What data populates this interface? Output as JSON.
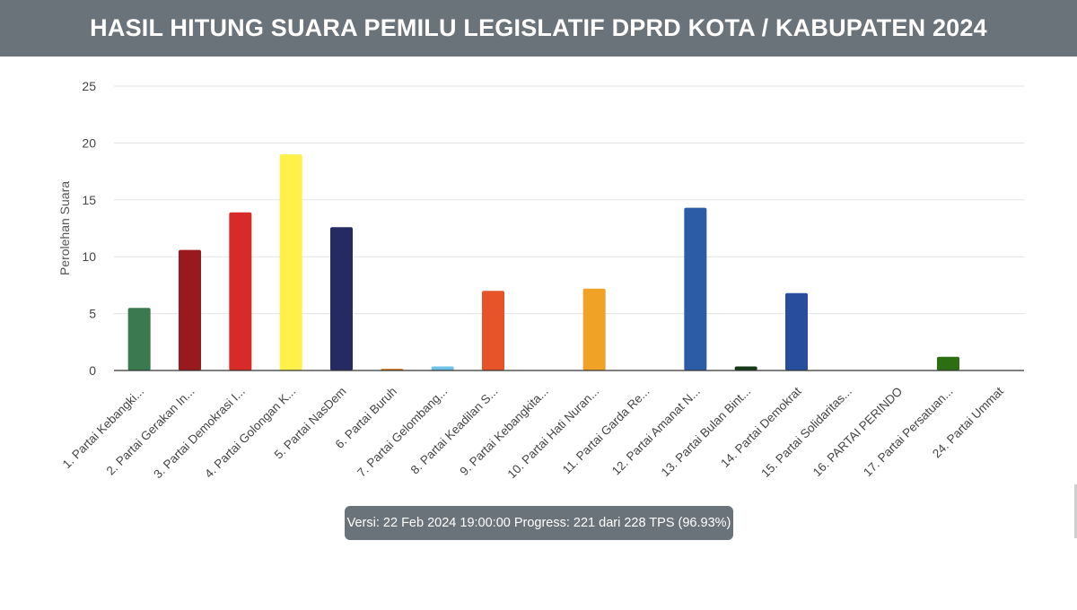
{
  "header": {
    "title": "HASIL HITUNG SUARA PEMILU LEGISLATIF DPRD KOTA / KABUPATEN 2024"
  },
  "footer": {
    "version_text": "Versi: 22 Feb 2024 19:00:00 Progress: 221 dari 228 TPS (96.93%)"
  },
  "chart_data": {
    "type": "bar",
    "ylabel": "Perolehan Suara",
    "ylim": [
      0,
      25
    ],
    "yticks": [
      0,
      5,
      10,
      15,
      20,
      25
    ],
    "grid": true,
    "legend": "none",
    "categories": [
      "1. Partai Kebangki...",
      "2. Partai Gerakan In...",
      "3. Partai Demokrasi I...",
      "4. Partai Golongan K...",
      "5. Partai NasDem",
      "6. Partai Buruh",
      "7. Partai Gelombang...",
      "8. Partai Keadilan S...",
      "9. Partai Kebangkita...",
      "10. Partai Hati Nuran...",
      "11. Partai Garda Re...",
      "12. Partai Amanat N...",
      "13. Partai Bulan Bint...",
      "14. Partai Demokrat",
      "15. Partai Solidaritas...",
      "16. PARTAI PERINDO",
      "17. Partai Persatuan...",
      "24. Partai Ummat"
    ],
    "values": [
      5.5,
      10.6,
      13.9,
      19.0,
      12.6,
      0.15,
      0.35,
      7.0,
      0,
      7.2,
      0,
      14.3,
      0.35,
      6.8,
      0,
      0,
      1.2,
      0
    ],
    "colors": [
      "#3a7a4e",
      "#98191e",
      "#d62b29",
      "#fff04a",
      "#262a63",
      "#d9771c",
      "#6cc3e8",
      "#e8542a",
      "#1e7a3a",
      "#f0a226",
      "#7a1418",
      "#2b5ca5",
      "#153a1a",
      "#284d9c",
      "#d51f4e",
      "#1a2e6e",
      "#2d6e12",
      "#2a4d7a"
    ]
  }
}
